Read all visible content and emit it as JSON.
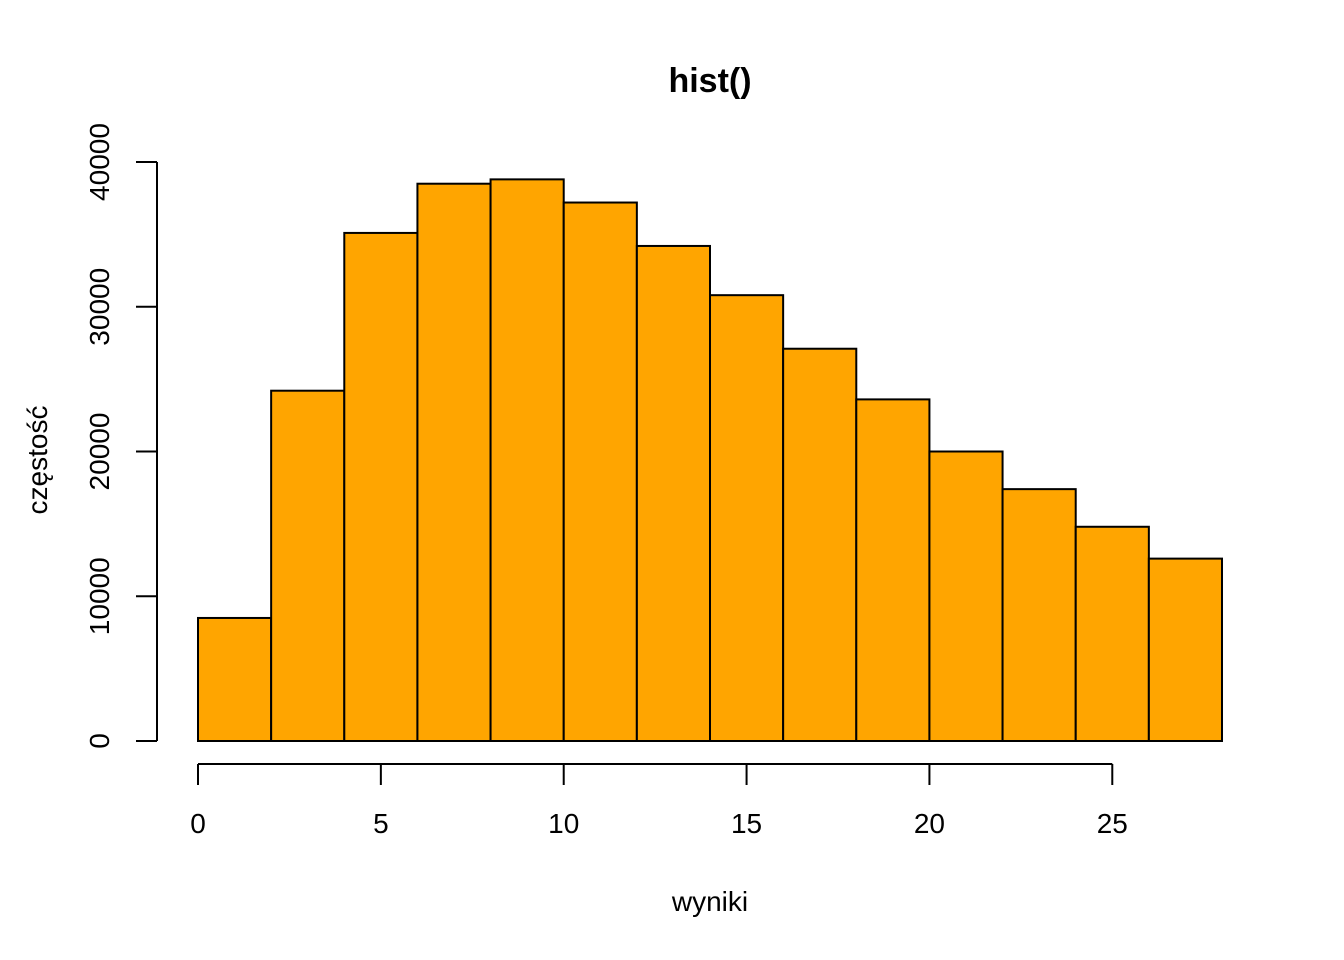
{
  "chart_data": {
    "type": "bar",
    "title": "hist()",
    "xlabel": "wyniki",
    "ylabel": "częstość",
    "bar_color": "#FFA500",
    "border_color": "#000000",
    "bins": [
      {
        "x0": 0,
        "x1": 2,
        "count": 8500
      },
      {
        "x0": 2,
        "x1": 4,
        "count": 24200
      },
      {
        "x0": 4,
        "x1": 6,
        "count": 35100
      },
      {
        "x0": 6,
        "x1": 8,
        "count": 38500
      },
      {
        "x0": 8,
        "x1": 10,
        "count": 38800
      },
      {
        "x0": 10,
        "x1": 12,
        "count": 37200
      },
      {
        "x0": 12,
        "x1": 14,
        "count": 34200
      },
      {
        "x0": 14,
        "x1": 16,
        "count": 30800
      },
      {
        "x0": 16,
        "x1": 18,
        "count": 27100
      },
      {
        "x0": 18,
        "x1": 20,
        "count": 23600
      },
      {
        "x0": 20,
        "x1": 22,
        "count": 20000
      },
      {
        "x0": 22,
        "x1": 24,
        "count": 17400
      },
      {
        "x0": 24,
        "x1": 26,
        "count": 14800
      },
      {
        "x0": 26,
        "x1": 28,
        "count": 12600
      }
    ],
    "xlim": [
      0,
      28
    ],
    "ylim": [
      0,
      40000
    ],
    "x_ticks": [
      0,
      5,
      10,
      15,
      20,
      25
    ],
    "y_ticks": [
      0,
      10000,
      20000,
      30000,
      40000
    ],
    "grid": false,
    "legend": "none"
  }
}
